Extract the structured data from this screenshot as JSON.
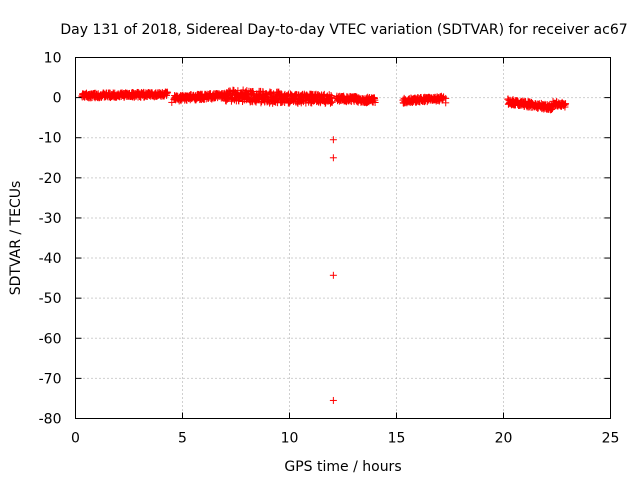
{
  "chart_data": {
    "type": "scatter",
    "title": "Day 131 of 2018, Sidereal Day-to-day VTEC variation (SDTVAR) for receiver ac67",
    "xlabel": "GPS time / hours",
    "ylabel": "SDTVAR / TECUs",
    "xlim": [
      0,
      25
    ],
    "ylim": [
      -80,
      10
    ],
    "xticks": [
      0,
      5,
      10,
      15,
      20,
      25
    ],
    "yticks": [
      10,
      0,
      -10,
      -20,
      -30,
      -40,
      -50,
      -60,
      -70,
      -80
    ],
    "xtick_labels": [
      "0",
      "5",
      "10",
      "15",
      "20",
      "25"
    ],
    "ytick_labels": [
      "10",
      "0",
      "-10",
      "-20",
      "-30",
      "-40",
      "-50",
      "-60",
      "-70",
      "-80"
    ],
    "grid": true,
    "marker": "+",
    "color": "#ff0000",
    "series": [
      {
        "name": "SDTVAR",
        "segments": [
          {
            "x_start": 0.3,
            "x_end": 4.3,
            "y_start": 0.5,
            "y_end": 0.8,
            "spread": 1.2
          },
          {
            "x_start": 4.6,
            "x_end": 7.0,
            "y_start": -0.2,
            "y_end": 0.5,
            "spread": 1.4
          },
          {
            "x_start": 7.0,
            "x_end": 9.5,
            "y_start": 0.6,
            "y_end": 0.0,
            "spread": 3.0
          },
          {
            "x_start": 9.5,
            "x_end": 12.0,
            "y_start": -0.2,
            "y_end": -0.4,
            "spread": 2.4
          },
          {
            "x_start": 12.2,
            "x_end": 14.0,
            "y_start": -0.2,
            "y_end": -0.7,
            "spread": 1.4
          },
          {
            "x_start": 15.3,
            "x_end": 17.2,
            "y_start": -0.8,
            "y_end": -0.2,
            "spread": 1.2
          },
          {
            "x_start": 20.2,
            "x_end": 22.3,
            "y_start": -1.0,
            "y_end": -2.5,
            "spread": 1.4
          },
          {
            "x_start": 22.3,
            "x_end": 22.9,
            "y_start": -1.5,
            "y_end": -1.8,
            "spread": 1.2
          }
        ],
        "outliers": [
          {
            "x": 12.05,
            "y": -10.5
          },
          {
            "x": 12.05,
            "y": -15.0
          },
          {
            "x": 12.05,
            "y": -44.3
          },
          {
            "x": 12.05,
            "y": -75.5
          },
          {
            "x": 4.5,
            "y": -1.2
          },
          {
            "x": 17.3,
            "y": -1.3
          },
          {
            "x": 17.3,
            "y": -0.2
          },
          {
            "x": 16.9,
            "y": 0.2
          }
        ]
      }
    ]
  }
}
